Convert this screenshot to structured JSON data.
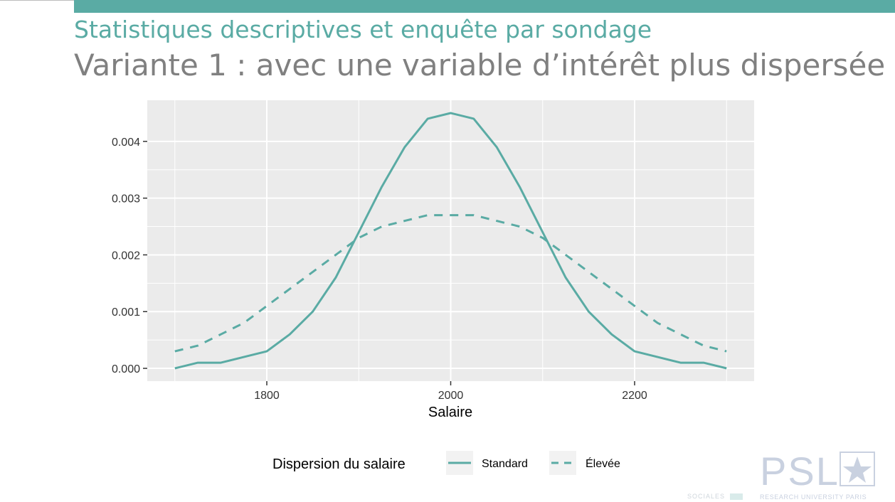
{
  "slide": {
    "title": "Statistiques descriptives et enquête par sondage",
    "subtitle": "Variante 1 : avec une variable d’intérêt plus dispersée"
  },
  "colors": {
    "accent": "#5aaba4",
    "subtitle": "#808080",
    "panel": "#ebebeb",
    "grid": "#ffffff"
  },
  "logo": {
    "text": "PSL",
    "caption": "RESEARCH UNIVERSITY PARIS",
    "icon": "star-icon"
  },
  "footer": {
    "text": "SOCIALES"
  },
  "chart_data": {
    "type": "line",
    "title": "",
    "xlabel": "Salaire",
    "ylabel": "",
    "xlim": [
      1700,
      2300
    ],
    "ylim": [
      0,
      0.0045
    ],
    "x_ticks": [
      1800,
      2000,
      2200
    ],
    "x_tick_labels": [
      "1800",
      "2000",
      "2200"
    ],
    "y_ticks": [
      0,
      0.001,
      0.002,
      0.003,
      0.004
    ],
    "y_tick_labels": [
      "0.000",
      "0.001",
      "0.002",
      "0.003",
      "0.004"
    ],
    "grid": true,
    "legend": {
      "title": "Dispersion du salaire",
      "position": "bottom"
    },
    "x": [
      1700,
      1725,
      1750,
      1775,
      1800,
      1825,
      1850,
      1875,
      1900,
      1925,
      1950,
      1975,
      2000,
      2025,
      2050,
      2075,
      2100,
      2125,
      2150,
      2175,
      2200,
      2225,
      2250,
      2275,
      2300
    ],
    "series": [
      {
        "name": "Standard",
        "style": "solid",
        "color": "#5aaba4",
        "values": [
          0.0,
          0.0001,
          0.0001,
          0.0002,
          0.0003,
          0.0006,
          0.001,
          0.0016,
          0.0024,
          0.0032,
          0.0039,
          0.0044,
          0.0045,
          0.0044,
          0.0039,
          0.0032,
          0.0024,
          0.0016,
          0.001,
          0.0006,
          0.0003,
          0.0002,
          0.0001,
          0.0001,
          0.0
        ]
      },
      {
        "name": "Élevée",
        "style": "dashed",
        "color": "#5aaba4",
        "values": [
          0.0003,
          0.0004,
          0.0006,
          0.0008,
          0.0011,
          0.0014,
          0.0017,
          0.002,
          0.0023,
          0.0025,
          0.0026,
          0.0027,
          0.0027,
          0.0027,
          0.0026,
          0.0025,
          0.0023,
          0.002,
          0.0017,
          0.0014,
          0.0011,
          0.0008,
          0.0006,
          0.0004,
          0.0003
        ]
      }
    ]
  }
}
